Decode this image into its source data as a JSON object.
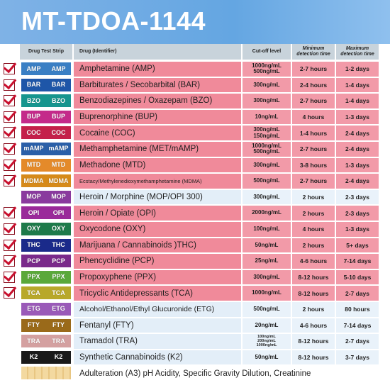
{
  "title": "MT-TDOA-1144",
  "headers": {
    "strip": "Drug Test Strip",
    "drug": "Drug (Identifier)",
    "cutoff": "Cut-off level",
    "min": "Minimum\ndetection time",
    "max": "Maximum\ndetection time"
  },
  "rows": [
    {
      "checked": true,
      "strip": "AMP",
      "strip_color": "#3a7fc4",
      "drug": "Amphetamine (AMP)",
      "cutoff": "1000ng/mL\n500ng/mL",
      "min": "2-7 hours",
      "max": "1-2 days",
      "theme": "pink",
      "size": ""
    },
    {
      "checked": true,
      "strip": "BAR",
      "strip_color": "#1e56a8",
      "drug": "Barbiturates / Secobarbital (BAR)",
      "cutoff": "300ng/mL",
      "min": "2-4 hours",
      "max": "1-4 days",
      "theme": "pink",
      "size": ""
    },
    {
      "checked": true,
      "strip": "BZO",
      "strip_color": "#16958e",
      "drug": "Benzodiazepines / Oxazepam (BZO)",
      "cutoff": "300ng/mL",
      "min": "2-7 hours",
      "max": "1-4 days",
      "theme": "pink",
      "size": ""
    },
    {
      "checked": true,
      "strip": "BUP",
      "strip_color": "#c42a8a",
      "drug": "Buprenorphine (BUP)",
      "cutoff": "10ng/mL",
      "min": "4 hours",
      "max": "1-3 days",
      "theme": "pink",
      "size": ""
    },
    {
      "checked": true,
      "strip": "COC",
      "strip_color": "#c4204a",
      "drug": "Cocaine (COC)",
      "cutoff": "300ng/mL\n150ng/mL",
      "min": "1-4 hours",
      "max": "2-4 days",
      "theme": "pink",
      "size": ""
    },
    {
      "checked": true,
      "strip": "mAMP",
      "strip_color": "#2a5fa8",
      "drug": "Methamphetamine (MET/mAMP)",
      "cutoff": "1000ng/mL\n500ng/mL",
      "min": "2-7 hours",
      "max": "2-4 days",
      "theme": "pink",
      "size": ""
    },
    {
      "checked": true,
      "strip": "MTD",
      "strip_color": "#e48a2a",
      "drug": "Methadone (MTD)",
      "cutoff": "300ng/mL",
      "min": "3-8 hours",
      "max": "1-3 days",
      "theme": "pink",
      "size": ""
    },
    {
      "checked": true,
      "strip": "MDMA",
      "strip_color": "#d68a1a",
      "drug": "Ecstacy/Methylenedioxymethamphetamine (MDMA)",
      "cutoff": "500ng/mL",
      "min": "2-7 hours",
      "max": "2-4 days",
      "theme": "pink",
      "size": "small"
    },
    {
      "checked": false,
      "strip": "MOP",
      "strip_color": "#8a3a9e",
      "drug": "Heroin / Morphine (MOP/OPI 300)",
      "cutoff": "300ng/mL",
      "min": "2 hours",
      "max": "2-3 days",
      "theme": "blue",
      "size": ""
    },
    {
      "checked": true,
      "strip": "OPI",
      "strip_color": "#9a2a9a",
      "drug": "Heroin / Opiate (OPI)",
      "cutoff": "2000ng/mL",
      "min": "2 hours",
      "max": "2-3 days",
      "theme": "pink",
      "size": ""
    },
    {
      "checked": true,
      "strip": "OXY",
      "strip_color": "#1e7a4a",
      "drug": "Oxycodone (OXY)",
      "cutoff": "100ng/mL",
      "min": "4 hours",
      "max": "1-3 days",
      "theme": "pink",
      "size": ""
    },
    {
      "checked": true,
      "strip": "THC",
      "strip_color": "#1a2a8a",
      "drug": "Marijuana / Cannabinoids )THC)",
      "cutoff": "50ng/mL",
      "min": "2 hours",
      "max": "5+ days",
      "theme": "pink",
      "size": ""
    },
    {
      "checked": true,
      "strip": "PCP",
      "strip_color": "#7a2a8a",
      "drug": "Phencyclidine (PCP)",
      "cutoff": "25ng/mL",
      "min": "4-6 hours",
      "max": "7-14 days",
      "theme": "pink",
      "size": ""
    },
    {
      "checked": true,
      "strip": "PPX",
      "strip_color": "#5aa83a",
      "drug": "Propoxyphene (PPX)",
      "cutoff": "300ng/mL",
      "min": "8-12 hours",
      "max": "5-10 days",
      "theme": "pink",
      "size": ""
    },
    {
      "checked": true,
      "strip": "TCA",
      "strip_color": "#b8a82a",
      "drug": "Tricyclic Antidepressants (TCA)",
      "cutoff": "1000ng/mL",
      "min": "8-12 hours",
      "max": "2-7 days",
      "theme": "pink",
      "size": ""
    },
    {
      "checked": false,
      "strip": "ETG",
      "strip_color": "#9a5ab8",
      "drug": "Alcohol/Ethanol/Ethyl Glucuronide (ETG)",
      "cutoff": "500ng/mL",
      "min": "2 hours",
      "max": "80 hours",
      "theme": "blue",
      "size": "medium"
    },
    {
      "checked": false,
      "strip": "FTY",
      "strip_color": "#9a6a1a",
      "drug": "Fentanyl (FTY)",
      "cutoff": "20ng/mL",
      "min": "4-6 hours",
      "max": "7-14 days",
      "theme": "blue",
      "size": ""
    },
    {
      "checked": false,
      "strip": "TRA",
      "strip_color": "#d4a0a0",
      "drug": "Tramadol (TRA)",
      "cutoff": "100ng/mL\n200ng/mL\n1000ng/mL",
      "min": "8-12 hours",
      "max": "2-7 days",
      "theme": "blue",
      "size": ""
    },
    {
      "checked": false,
      "strip": "K2",
      "strip_color": "#1a1a1a",
      "drug": "Synthetic Cannabinoids (K2)",
      "cutoff": "50ng/mL",
      "min": "8-12 hours",
      "max": "3-7 days",
      "theme": "blue",
      "size": ""
    }
  ],
  "footer": {
    "label": "Adulteration (A3) pH Acidity, Specific Gravity Dilution, Creatinine"
  },
  "colors": {
    "banner": "#64a6e2",
    "pink_row": "#f08a9a",
    "blue_row": "#e3eef8",
    "check": "#c8102e"
  }
}
